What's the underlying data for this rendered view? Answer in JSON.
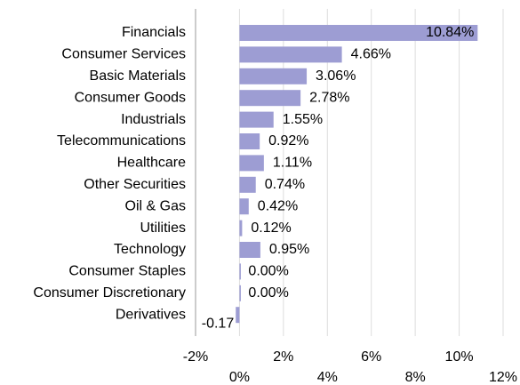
{
  "chart_data": {
    "type": "bar",
    "orientation": "horizontal",
    "categories": [
      "Financials",
      "Consumer Services",
      "Basic Materials",
      "Consumer Goods",
      "Industrials",
      "Telecommunications",
      "Healthcare",
      "Other Securities",
      "Oil & Gas",
      "Utilities",
      "Technology",
      "Consumer Staples",
      "Consumer Discretionary",
      "Derivatives"
    ],
    "values": [
      10.84,
      4.66,
      3.06,
      2.78,
      1.55,
      0.92,
      1.11,
      0.74,
      0.42,
      0.12,
      0.95,
      0,
      0,
      -0.17
    ],
    "value_labels": [
      "10.84%",
      "4.66%",
      "3.06%",
      "2.78%",
      "1.55%",
      "0.92%",
      "1.11%",
      "0.74%",
      "0.42%",
      "0.12%",
      "0.95%",
      "0.00%",
      "0.00%",
      "-0.17"
    ],
    "color": "#9d9dd3",
    "xlim": [
      -2,
      12
    ],
    "xticks": [
      {
        "value": -2,
        "label": "-2%"
      },
      {
        "value": 0,
        "label": "0%"
      },
      {
        "value": 2,
        "label": "2%"
      },
      {
        "value": 4,
        "label": "4%"
      },
      {
        "value": 6,
        "label": "6%"
      },
      {
        "value": 8,
        "label": "8%"
      },
      {
        "value": 10,
        "label": "10%"
      },
      {
        "value": 12,
        "label": "12%"
      }
    ],
    "grid": true
  }
}
